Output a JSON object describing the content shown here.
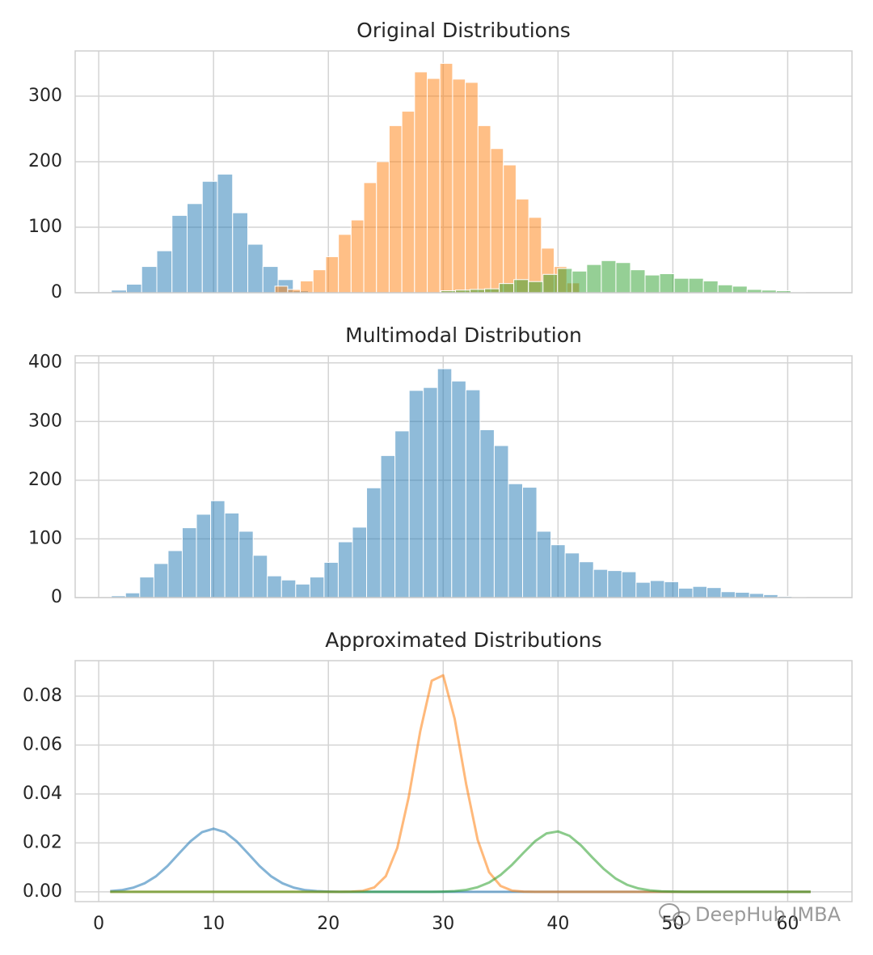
{
  "chart_data": [
    {
      "type": "histogram",
      "title": "Original Distributions",
      "xlim": [
        -2.05,
        65.6
      ],
      "xticks": [
        0,
        10,
        20,
        30,
        40,
        50,
        60
      ],
      "ylim": [
        0,
        369
      ],
      "yticks": [
        0,
        100,
        200,
        300
      ],
      "grid": true,
      "series": [
        {
          "color": "#1f77b4",
          "bins": [
            1.1,
            2.42,
            3.74,
            5.06,
            6.38,
            7.7,
            9.02,
            10.34,
            11.66,
            12.98,
            14.3,
            15.62,
            16.94,
            18.26
          ],
          "values": [
            4,
            13,
            40,
            64,
            118,
            136,
            170,
            181,
            122,
            74,
            40,
            20,
            3
          ]
        },
        {
          "color": "#ff7f0e",
          "bins": [
            15.35,
            16.455,
            17.56,
            18.665,
            19.77,
            20.875,
            21.98,
            23.085,
            24.19,
            25.295,
            26.4,
            27.505,
            28.61,
            29.715,
            30.82,
            31.925,
            33.03,
            34.135,
            35.24,
            36.345,
            37.45,
            38.555,
            39.66,
            40.765,
            41.87
          ],
          "values": [
            10,
            5,
            18,
            35,
            55,
            89,
            111,
            168,
            200,
            255,
            277,
            337,
            327,
            350,
            326,
            321,
            255,
            220,
            195,
            143,
            115,
            68,
            40,
            15
          ]
        },
        {
          "color": "#2ca02c",
          "bins": [
            29.8,
            31.07,
            32.34,
            33.61,
            34.88,
            36.15,
            37.42,
            38.69,
            39.96,
            41.23,
            42.5,
            43.77,
            45.04,
            46.31,
            47.58,
            48.85,
            50.12,
            51.39,
            52.66,
            53.93,
            55.2,
            56.47,
            57.74,
            59.01,
            60.28,
            61.55
          ],
          "values": [
            3,
            4,
            5,
            6,
            14,
            20,
            17,
            28,
            37,
            33,
            43,
            49,
            46,
            35,
            27,
            29,
            22,
            22,
            18,
            12,
            10,
            5,
            4,
            3,
            1
          ]
        }
      ]
    },
    {
      "type": "histogram",
      "title": "Multimodal Distribution",
      "xlim": [
        -2.05,
        65.6
      ],
      "xticks": [
        0,
        10,
        20,
        30,
        40,
        50,
        60
      ],
      "ylim": [
        0,
        412
      ],
      "yticks": [
        0,
        100,
        200,
        300,
        400
      ],
      "grid": true,
      "series": [
        {
          "color": "#1f77b4",
          "bins": [
            1.1,
            2.335,
            3.57,
            4.805,
            6.04,
            7.275,
            8.51,
            9.745,
            10.98,
            12.215,
            13.45,
            14.685,
            15.92,
            17.155,
            18.39,
            19.625,
            20.86,
            22.095,
            23.33,
            24.565,
            25.8,
            27.035,
            28.27,
            29.505,
            30.74,
            31.975,
            33.21,
            34.445,
            35.68,
            36.915,
            38.15,
            39.385,
            40.62,
            41.855,
            43.09,
            44.325,
            45.56,
            46.795,
            48.03,
            49.265,
            50.5,
            51.735,
            52.97,
            54.205,
            55.44,
            56.675,
            57.91,
            59.145,
            60.38,
            61.615
          ],
          "values": [
            3,
            8,
            35,
            58,
            80,
            119,
            142,
            165,
            144,
            113,
            72,
            37,
            30,
            23,
            35,
            60,
            95,
            120,
            187,
            242,
            284,
            353,
            358,
            390,
            369,
            354,
            286,
            259,
            194,
            188,
            113,
            90,
            76,
            61,
            48,
            46,
            44,
            26,
            29,
            27,
            16,
            19,
            17,
            10,
            9,
            7,
            5,
            2,
            1
          ]
        }
      ]
    },
    {
      "type": "line",
      "title": "Approximated Distributions",
      "xlim": [
        -2.05,
        65.6
      ],
      "xticks": [
        0,
        10,
        20,
        30,
        40,
        50,
        60
      ],
      "ylim": [
        -0.004,
        0.0945
      ],
      "yticks": [
        {
          "value": 0,
          "label": "0.00"
        },
        0.02,
        0.04,
        0.06,
        0.08
      ],
      "grid": true,
      "x": [
        1,
        2,
        3,
        4,
        5,
        6,
        7,
        8,
        9,
        10,
        11,
        12,
        13,
        14,
        15,
        16,
        17,
        18,
        19,
        20,
        21,
        22,
        23,
        24,
        25,
        26,
        27,
        28,
        29,
        30,
        31,
        32,
        33,
        34,
        35,
        36,
        37,
        38,
        39,
        40,
        41,
        42,
        43,
        44,
        45,
        46,
        47,
        48,
        49,
        50,
        51,
        52,
        53,
        54,
        55,
        56,
        57,
        58,
        59,
        60,
        61,
        62
      ],
      "series": [
        {
          "color": "#1f77b4",
          "values": [
            0.0003,
            0.0007,
            0.0017,
            0.0035,
            0.0064,
            0.0106,
            0.0157,
            0.0207,
            0.0244,
            0.0258,
            0.0244,
            0.0207,
            0.0157,
            0.0106,
            0.0064,
            0.0035,
            0.0017,
            0.0007,
            0.0003,
            0.0001,
            0,
            0,
            0,
            0,
            0,
            0,
            0,
            0,
            0,
            0,
            0,
            0,
            0,
            0,
            0,
            0,
            0,
            0,
            0,
            0,
            0,
            0,
            0,
            0,
            0,
            0,
            0,
            0,
            0,
            0,
            0,
            0,
            0,
            0,
            0,
            0,
            0,
            0,
            0,
            0,
            0,
            0
          ]
        },
        {
          "color": "#ff7f0e",
          "values": [
            0,
            0,
            0,
            0,
            0,
            0,
            0,
            0,
            0,
            0,
            0,
            0,
            0,
            0,
            0,
            0,
            0,
            0,
            0,
            0,
            0,
            0.0001,
            0.0004,
            0.0018,
            0.0064,
            0.0179,
            0.0388,
            0.0656,
            0.0863,
            0.0885,
            0.0707,
            0.044,
            0.0213,
            0.008,
            0.0024,
            0.0005,
            0.0001,
            0,
            0,
            0,
            0,
            0,
            0,
            0,
            0,
            0,
            0,
            0,
            0,
            0,
            0,
            0,
            0,
            0,
            0,
            0,
            0,
            0,
            0,
            0,
            0,
            0
          ]
        },
        {
          "color": "#2ca02c",
          "values": [
            0,
            0,
            0,
            0,
            0,
            0,
            0,
            0,
            0,
            0,
            0,
            0,
            0,
            0,
            0,
            0,
            0,
            0,
            0,
            0,
            0,
            0,
            0,
            0,
            0,
            0,
            0,
            0,
            0,
            0.0001,
            0.0003,
            0.0008,
            0.0019,
            0.0038,
            0.0069,
            0.0111,
            0.016,
            0.0207,
            0.0239,
            0.0247,
            0.0229,
            0.019,
            0.014,
            0.0093,
            0.0055,
            0.0029,
            0.0014,
            0.0006,
            0.0002,
            0.0001,
            0,
            0,
            0,
            0,
            0,
            0,
            0,
            0,
            0,
            0,
            0,
            0
          ]
        }
      ]
    }
  ],
  "watermark": "DeepHub IMBA"
}
